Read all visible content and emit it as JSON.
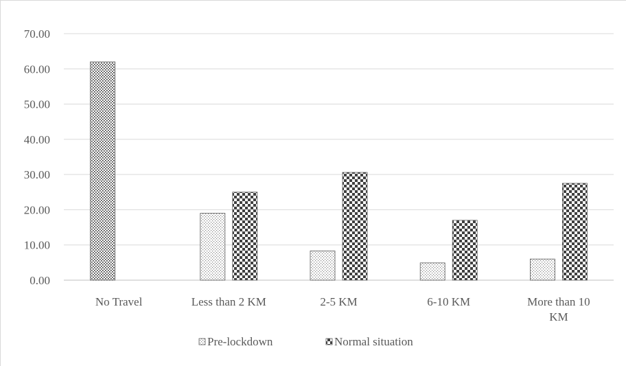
{
  "chart_data": {
    "type": "bar",
    "title": "",
    "xlabel": "",
    "ylabel": "",
    "ylim": [
      0,
      70
    ],
    "yticks": [
      0,
      10,
      20,
      30,
      40,
      50,
      60,
      70
    ],
    "ytick_labels": [
      "0.00",
      "10.00",
      "20.00",
      "30.00",
      "40.00",
      "50.00",
      "60.00",
      "70.00"
    ],
    "categories": [
      [
        "No Travel"
      ],
      [
        "Less than 2 KM"
      ],
      [
        "2-5 KM"
      ],
      [
        "6-10 KM"
      ],
      [
        "More than 10",
        "KM"
      ]
    ],
    "series": [
      {
        "name": "Pre-lockdown",
        "values": [
          62,
          19,
          8.3,
          4.9,
          6.0
        ],
        "pattern": "dots-fine"
      },
      {
        "name": "Normal situation",
        "values": [
          0,
          25,
          30.6,
          17,
          27.5
        ],
        "pattern": "checker"
      }
    ],
    "grid": true,
    "legend_position": "bottom"
  }
}
